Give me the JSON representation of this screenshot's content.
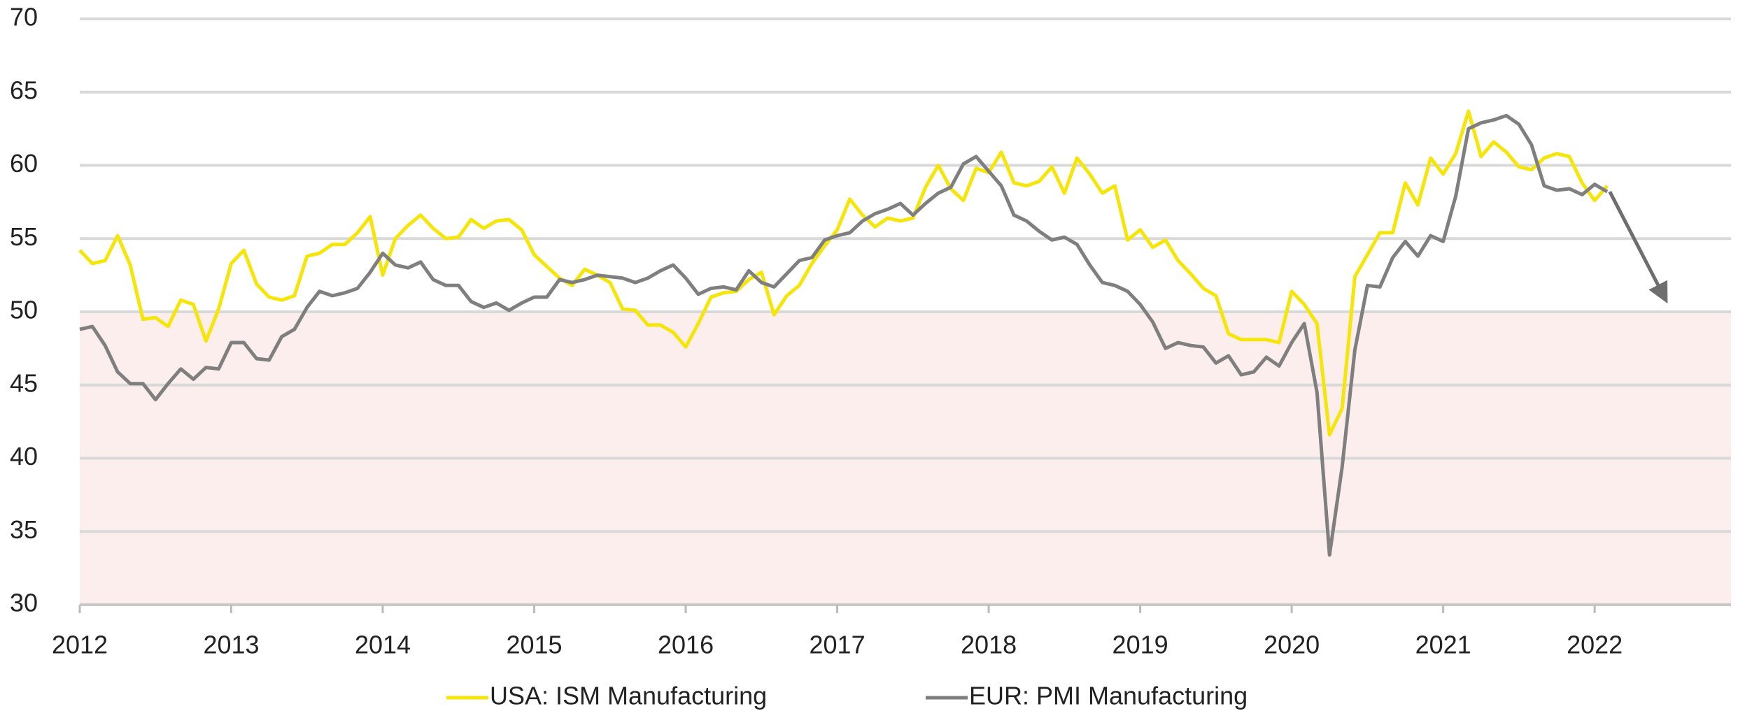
{
  "chart_data": {
    "type": "line",
    "x": [
      2012,
      2012.083,
      2012.167,
      2012.25,
      2012.333,
      2012.417,
      2012.5,
      2012.583,
      2012.667,
      2012.75,
      2012.833,
      2012.917,
      2013,
      2013.083,
      2013.167,
      2013.25,
      2013.333,
      2013.417,
      2013.5,
      2013.583,
      2013.667,
      2013.75,
      2013.833,
      2013.917,
      2014,
      2014.083,
      2014.167,
      2014.25,
      2014.333,
      2014.417,
      2014.5,
      2014.583,
      2014.667,
      2014.75,
      2014.833,
      2014.917,
      2015,
      2015.083,
      2015.167,
      2015.25,
      2015.333,
      2015.417,
      2015.5,
      2015.583,
      2015.667,
      2015.75,
      2015.833,
      2015.917,
      2016,
      2016.083,
      2016.167,
      2016.25,
      2016.333,
      2016.417,
      2016.5,
      2016.583,
      2016.667,
      2016.75,
      2016.833,
      2016.917,
      2017,
      2017.083,
      2017.167,
      2017.25,
      2017.333,
      2017.417,
      2017.5,
      2017.583,
      2017.667,
      2017.75,
      2017.833,
      2017.917,
      2018,
      2018.083,
      2018.167,
      2018.25,
      2018.333,
      2018.417,
      2018.5,
      2018.583,
      2018.667,
      2018.75,
      2018.833,
      2018.917,
      2019,
      2019.083,
      2019.167,
      2019.25,
      2019.333,
      2019.417,
      2019.5,
      2019.583,
      2019.667,
      2019.75,
      2019.833,
      2019.917,
      2020,
      2020.083,
      2020.167,
      2020.25,
      2020.333,
      2020.417,
      2020.5,
      2020.583,
      2020.667,
      2020.75,
      2020.833,
      2020.917,
      2021,
      2021.083,
      2021.167,
      2021.25,
      2021.333,
      2021.417,
      2021.5,
      2021.583,
      2021.667,
      2021.75,
      2021.833,
      2021.917,
      2022,
      2022.083
    ],
    "series": [
      {
        "name": "USA: ISM Manufacturing",
        "color": "#f5e50a",
        "values": [
          54.2,
          53.3,
          53.5,
          55.2,
          53.2,
          49.5,
          49.6,
          49.0,
          50.8,
          50.5,
          48.0,
          50.2,
          53.3,
          54.2,
          51.9,
          51.0,
          50.8,
          51.1,
          53.8,
          54.0,
          54.6,
          54.6,
          55.4,
          56.5,
          52.5,
          55.0,
          55.9,
          56.6,
          55.7,
          55.0,
          55.1,
          56.3,
          55.7,
          56.2,
          56.3,
          55.6,
          53.9,
          53.1,
          52.3,
          51.8,
          52.9,
          52.5,
          52.0,
          50.2,
          50.1,
          49.1,
          49.1,
          48.6,
          47.6,
          49.2,
          51.0,
          51.3,
          51.4,
          52.2,
          52.7,
          49.8,
          51.1,
          51.8,
          53.3,
          54.5,
          55.6,
          57.7,
          56.6,
          55.8,
          56.4,
          56.2,
          56.4,
          58.5,
          60.0,
          58.4,
          57.6,
          59.8,
          59.5,
          60.9,
          58.8,
          58.6,
          58.9,
          59.9,
          58.1,
          60.5,
          59.4,
          58.1,
          58.6,
          54.9,
          55.6,
          54.4,
          54.9,
          53.5,
          52.6,
          51.6,
          51.1,
          48.5,
          48.1,
          48.1,
          48.1,
          47.9,
          51.4,
          50.5,
          49.2,
          41.6,
          43.4,
          52.4,
          53.9,
          55.4,
          55.4,
          58.8,
          57.3,
          60.5,
          59.4,
          60.8,
          63.7,
          60.6,
          61.6,
          60.9,
          59.9,
          59.7,
          60.5,
          60.8,
          60.6,
          58.8,
          57.6,
          58.6
        ]
      },
      {
        "name": "EUR: PMI Manufacturing",
        "color": "#7f7f7f",
        "values": [
          48.8,
          49.0,
          47.7,
          45.9,
          45.1,
          45.1,
          44.0,
          45.1,
          46.1,
          45.4,
          46.2,
          46.1,
          47.9,
          47.9,
          46.8,
          46.7,
          48.3,
          48.8,
          50.3,
          51.4,
          51.1,
          51.3,
          51.6,
          52.7,
          54.0,
          53.2,
          53.0,
          53.4,
          52.2,
          51.8,
          51.8,
          50.7,
          50.3,
          50.6,
          50.1,
          50.6,
          51.0,
          51.0,
          52.2,
          52.0,
          52.2,
          52.5,
          52.4,
          52.3,
          52.0,
          52.3,
          52.8,
          53.2,
          52.3,
          51.2,
          51.6,
          51.7,
          51.5,
          52.8,
          52.0,
          51.7,
          52.6,
          53.5,
          53.7,
          54.9,
          55.2,
          55.4,
          56.2,
          56.7,
          57.0,
          57.4,
          56.6,
          57.4,
          58.1,
          58.5,
          60.1,
          60.6,
          59.6,
          58.6,
          56.6,
          56.2,
          55.5,
          54.9,
          55.1,
          54.6,
          53.2,
          52.0,
          51.8,
          51.4,
          50.5,
          49.3,
          47.5,
          47.9,
          47.7,
          47.6,
          46.5,
          47.0,
          45.7,
          45.9,
          46.9,
          46.3,
          47.9,
          49.2,
          44.5,
          33.4,
          39.4,
          47.4,
          51.8,
          51.7,
          53.7,
          54.8,
          53.8,
          55.2,
          54.8,
          57.9,
          62.5,
          62.9,
          63.1,
          63.4,
          62.8,
          61.4,
          58.6,
          58.3,
          58.4,
          58.0,
          58.7,
          58.2
        ]
      }
    ],
    "xlim": [
      2012,
      2022.9
    ],
    "xticks": [
      2012,
      2013,
      2014,
      2015,
      2016,
      2017,
      2018,
      2019,
      2020,
      2021,
      2022
    ],
    "ylim": [
      30,
      70
    ],
    "yticks": [
      30,
      35,
      40,
      45,
      50,
      55,
      60,
      65,
      70
    ],
    "grid": true,
    "shade": {
      "ymin": 30,
      "ymax": 50,
      "color": "#fdeeee"
    },
    "arrow": {
      "x": [
        2022.1,
        2022.45
      ],
      "y": [
        58.2,
        51.2
      ],
      "color": "#6e6e6e"
    },
    "legend": "bottom"
  }
}
